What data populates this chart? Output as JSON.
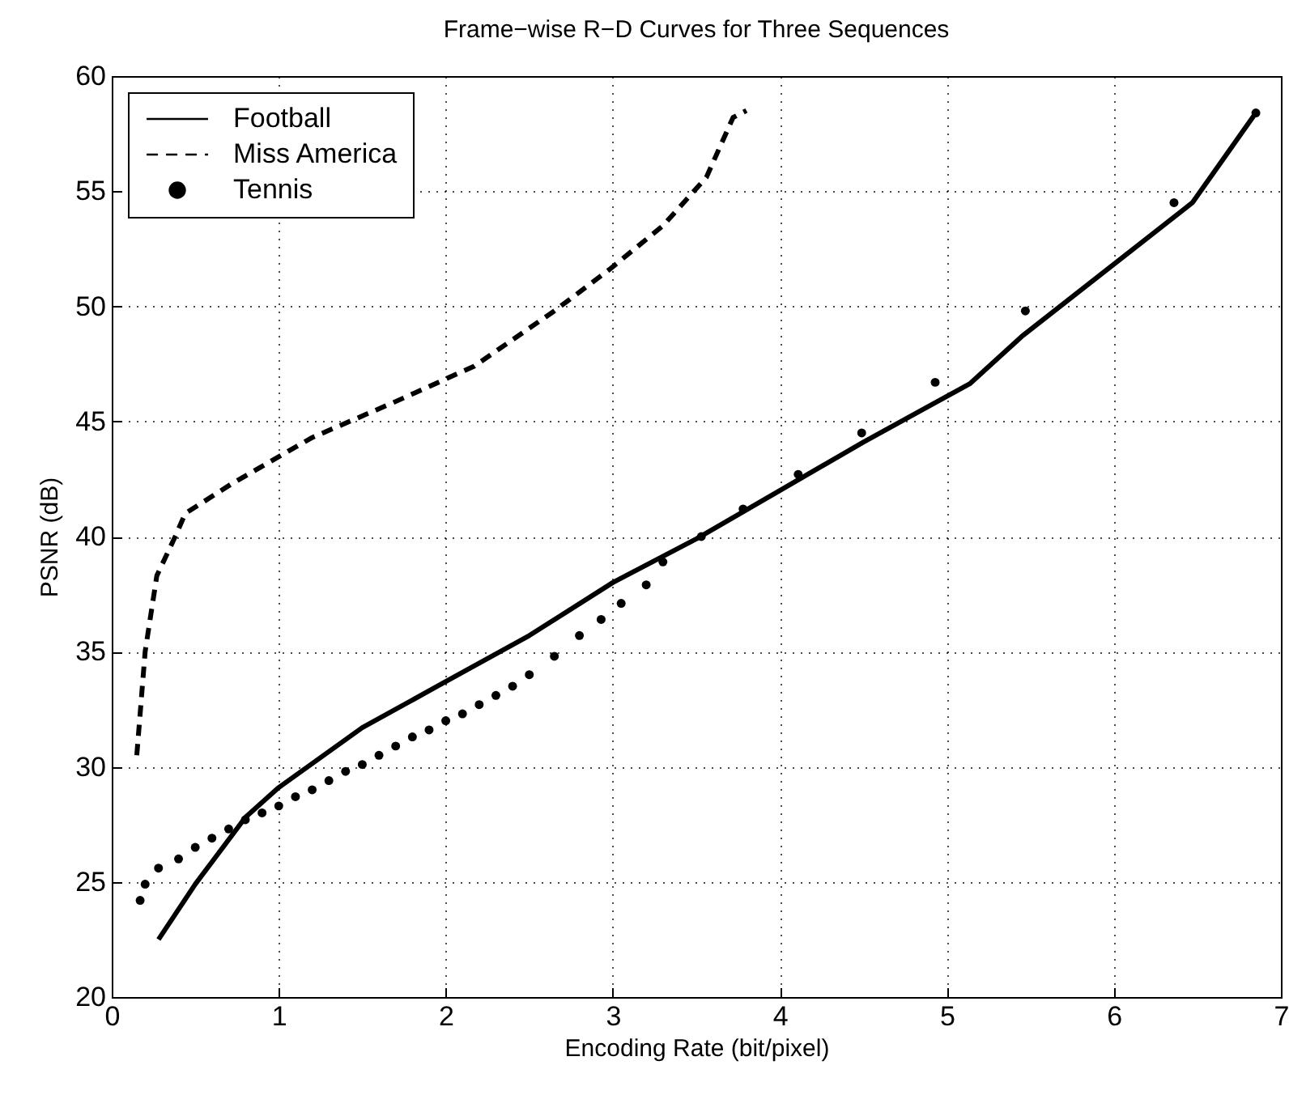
{
  "chart_data": {
    "type": "line",
    "title": "Frame−wise R−D Curves for Three Sequences",
    "xlabel": "Encoding Rate (bit/pixel)",
    "ylabel": "PSNR (dB)",
    "xlim": [
      0,
      7
    ],
    "xticks": [
      0,
      1,
      2,
      3,
      4,
      5,
      6,
      7
    ],
    "ylim": [
      20,
      60
    ],
    "yticks": [
      20,
      25,
      30,
      35,
      40,
      45,
      50,
      55,
      60
    ],
    "grid": true,
    "legend": "top left",
    "series": [
      {
        "name": "Football",
        "type": "line",
        "color": "#000000",
        "line_style": "solid",
        "x": [
          0.28,
          0.5,
          0.8,
          1,
          1.5,
          2,
          2.5,
          3,
          3.5,
          4,
          4.5,
          5.14,
          5.45,
          6.47,
          6.85
        ],
        "values": [
          22.5,
          24.9,
          27.8,
          29.1,
          31.7,
          33.7,
          35.7,
          38.0,
          39.9,
          42.0,
          44.1,
          46.65,
          48.7,
          54.5,
          58.4
        ]
      },
      {
        "name": "Miss America",
        "type": "line",
        "color": "#000000",
        "line_style": "dashed",
        "x": [
          0.15,
          0.2,
          0.27,
          0.38,
          0.44,
          0.72,
          1.2,
          1.68,
          2.17,
          2.65,
          2.98,
          3.3,
          3.56,
          3.72,
          3.8
        ],
        "values": [
          30.5,
          35.0,
          38.3,
          40.0,
          41.0,
          42.3,
          44.3,
          45.8,
          47.4,
          49.8,
          51.6,
          53.5,
          55.6,
          58.2,
          58.5
        ]
      },
      {
        "name": "Tennis",
        "type": "scatter",
        "color": "#000000",
        "marker": "circle",
        "x": [
          0.17,
          0.2,
          0.28,
          0.4,
          0.5,
          0.6,
          0.7,
          0.8,
          0.9,
          1,
          1.1,
          1.2,
          1.3,
          1.4,
          1.5,
          1.6,
          1.7,
          1.8,
          1.9,
          2,
          2.1,
          2.2,
          2.3,
          2.4,
          2.5,
          2.65,
          2.8,
          2.93,
          3.05,
          3.2,
          3.3,
          3.53,
          3.78,
          4.11,
          4.49,
          4.93,
          5.47,
          6.36,
          6.85
        ],
        "values": [
          24.2,
          24.9,
          25.6,
          26.0,
          26.5,
          26.9,
          27.3,
          27.7,
          28.0,
          28.3,
          28.7,
          29.0,
          29.4,
          29.8,
          30.1,
          30.5,
          30.9,
          31.3,
          31.6,
          32.0,
          32.3,
          32.7,
          33.1,
          33.5,
          34.0,
          34.8,
          35.7,
          36.4,
          37.1,
          37.9,
          38.9,
          40.0,
          41.2,
          42.7,
          44.5,
          46.7,
          49.8,
          54.5,
          58.4
        ]
      }
    ]
  }
}
